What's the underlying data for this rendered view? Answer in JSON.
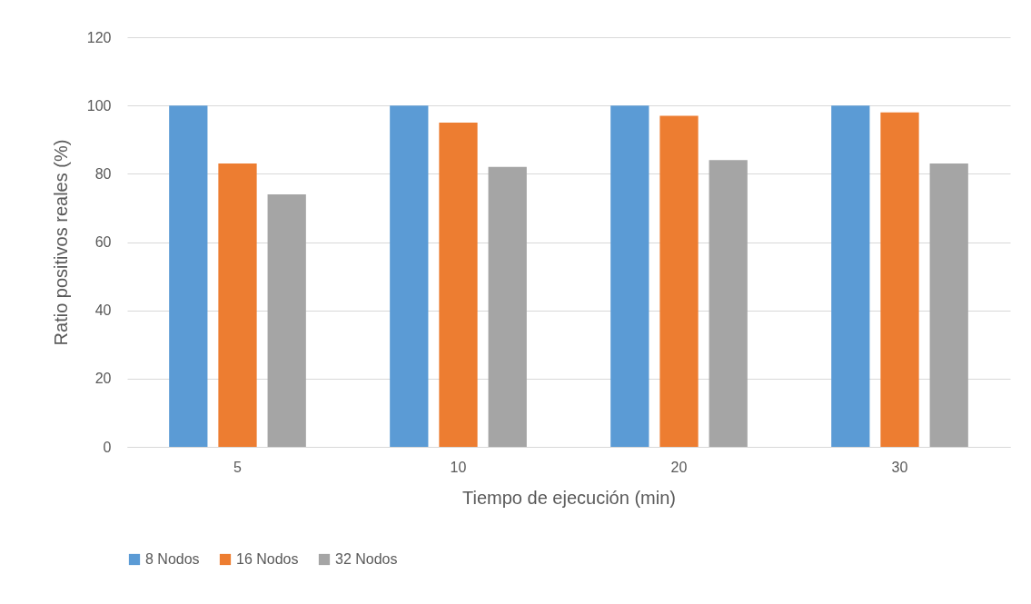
{
  "chart_data": {
    "type": "bar",
    "xlabel": "Tiempo de ejecución (min)",
    "ylabel": "Ratio positivos reales (%)",
    "categories": [
      "5",
      "10",
      "20",
      "30"
    ],
    "series": [
      {
        "name": "8 Nodos",
        "color": "#5b9bd5",
        "values": [
          100,
          100,
          100,
          100
        ]
      },
      {
        "name": "16 Nodos",
        "color": "#ed7d31",
        "values": [
          83,
          95,
          97,
          98
        ]
      },
      {
        "name": "32 Nodos",
        "color": "#a5a5a5",
        "values": [
          74,
          82,
          84,
          83
        ]
      }
    ],
    "ylim": [
      0,
      120
    ],
    "yticks": [
      0,
      20,
      40,
      60,
      80,
      100,
      120
    ],
    "grid": "y",
    "legend": "bottom"
  }
}
